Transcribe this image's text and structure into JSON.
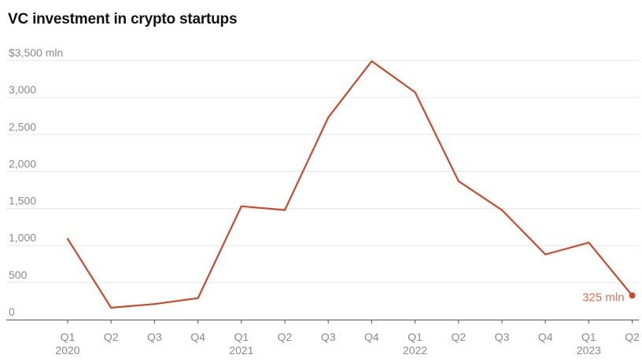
{
  "chart_data": {
    "type": "line",
    "title": "VC investment in crypto startups",
    "xlabel": "",
    "ylabel": "",
    "ylim": [
      0,
      3500
    ],
    "y_ticks": [
      {
        "value": 3500,
        "label": "$3,500 mln"
      },
      {
        "value": 3000,
        "label": "3,000"
      },
      {
        "value": 2500,
        "label": "2,500"
      },
      {
        "value": 2000,
        "label": "2,000"
      },
      {
        "value": 1500,
        "label": "1,500"
      },
      {
        "value": 1000,
        "label": "1,000"
      },
      {
        "value": 500,
        "label": "500"
      },
      {
        "value": 0,
        "label": "0"
      }
    ],
    "categories": [
      "Q1",
      "Q2",
      "Q3",
      "Q4",
      "Q1",
      "Q2",
      "Q3",
      "Q4",
      "Q1",
      "Q2",
      "Q3",
      "Q4",
      "Q1",
      "Q2"
    ],
    "year_labels": [
      "2020",
      "",
      "",
      "",
      "2021",
      "",
      "",
      "",
      "2022",
      "",
      "",
      "",
      "2023",
      ""
    ],
    "series": [
      {
        "name": "VC investment",
        "color": "#c94a2c",
        "values": [
          1090,
          160,
          210,
          290,
          1530,
          1480,
          2730,
          3490,
          3070,
          1870,
          1480,
          880,
          1040,
          325
        ]
      }
    ],
    "annotation": {
      "index": 13,
      "text": "325 mln",
      "color": "#e07050"
    },
    "grid": true
  }
}
